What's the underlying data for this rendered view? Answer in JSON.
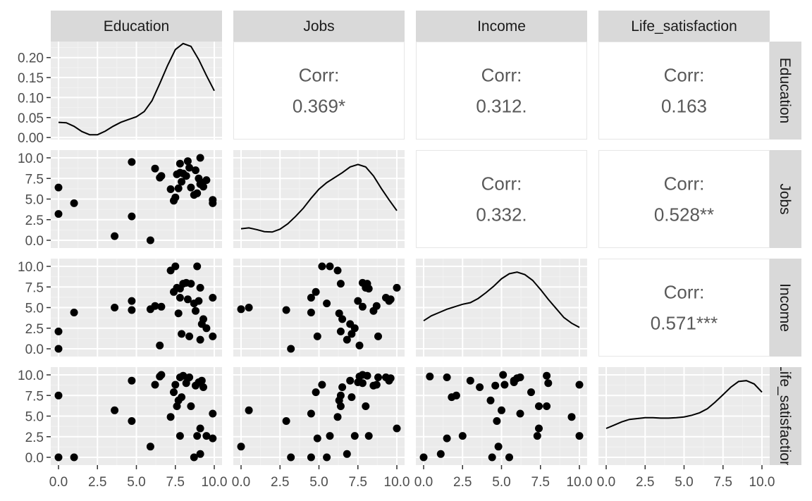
{
  "chart_data": {
    "type": "scatter",
    "variables": [
      "Education",
      "Jobs",
      "Income",
      "Life_satisfaction"
    ],
    "y_ticks": [
      "0.0",
      "2.5",
      "5.0",
      "7.5",
      "10.0"
    ],
    "x_ticks": [
      "0.0",
      "2.5",
      "5.0",
      "7.5",
      "10.0"
    ],
    "density_ticks": [
      "0.00",
      "0.05",
      "0.10",
      "0.15",
      "0.20"
    ],
    "range": [
      0,
      10
    ],
    "density_range": [
      -0.005,
      0.24
    ],
    "correlations": [
      {
        "row": 0,
        "col": 1,
        "label": "Corr:",
        "value": "0.369*"
      },
      {
        "row": 0,
        "col": 2,
        "label": "Corr:",
        "value": "0.312."
      },
      {
        "row": 0,
        "col": 3,
        "label": "Corr:",
        "value": "0.163"
      },
      {
        "row": 1,
        "col": 2,
        "label": "Corr:",
        "value": "0.332."
      },
      {
        "row": 1,
        "col": 3,
        "label": "Corr:",
        "value": "0.528**"
      },
      {
        "row": 2,
        "col": 3,
        "label": "Corr:",
        "value": "0.571***"
      }
    ],
    "densities": [
      {
        "x": [
          0,
          0.5,
          1,
          1.5,
          2,
          2.5,
          3,
          3.5,
          4,
          4.5,
          5,
          5.5,
          6,
          6.5,
          7,
          7.5,
          8,
          8.5,
          9,
          9.5,
          10
        ],
        "y": [
          0.038,
          0.037,
          0.028,
          0.015,
          0.007,
          0.007,
          0.016,
          0.028,
          0.038,
          0.045,
          0.052,
          0.065,
          0.092,
          0.135,
          0.18,
          0.22,
          0.235,
          0.228,
          0.195,
          0.155,
          0.117
        ]
      },
      {
        "x": [
          0,
          0.5,
          1,
          1.5,
          2,
          2.5,
          3,
          3.5,
          4,
          4.5,
          5,
          5.5,
          6,
          6.5,
          7,
          7.5,
          8,
          8.5,
          9,
          9.5,
          10
        ],
        "y": [
          1.4,
          1.5,
          1.3,
          1.05,
          1.0,
          1.35,
          2.0,
          2.9,
          3.9,
          5.1,
          6.2,
          7.0,
          7.6,
          8.2,
          8.9,
          9.2,
          8.9,
          7.8,
          6.3,
          4.9,
          3.6
        ]
      },
      {
        "x": [
          0,
          0.5,
          1,
          1.5,
          2,
          2.5,
          3,
          3.5,
          4,
          4.5,
          5,
          5.5,
          6,
          6.5,
          7,
          7.5,
          8,
          8.5,
          9,
          9.5,
          10
        ],
        "y": [
          3.4,
          4.0,
          4.4,
          4.8,
          5.1,
          5.4,
          5.6,
          6.1,
          6.8,
          7.6,
          8.5,
          9.1,
          9.3,
          9.0,
          8.3,
          7.2,
          6.0,
          4.9,
          3.8,
          3.1,
          2.6
        ]
      },
      {
        "x": [
          0,
          0.5,
          1,
          1.5,
          2,
          2.5,
          3,
          3.5,
          4,
          4.5,
          5,
          5.5,
          6,
          6.5,
          7,
          7.5,
          8,
          8.5,
          9,
          9.5,
          10
        ],
        "y": [
          3.5,
          3.9,
          4.3,
          4.6,
          4.7,
          4.8,
          4.8,
          4.75,
          4.75,
          4.8,
          4.9,
          5.1,
          5.4,
          5.9,
          6.7,
          7.6,
          8.5,
          9.2,
          9.3,
          8.9,
          7.9
        ]
      }
    ],
    "series": [
      {
        "name": "Education",
        "values": [
          0.0,
          0.0,
          1.0,
          3.6,
          4.7,
          4.7,
          5.9,
          6.2,
          6.5,
          6.6,
          7.2,
          7.4,
          7.5,
          7.6,
          7.7,
          7.8,
          7.8,
          7.9,
          8.0,
          8.2,
          8.3,
          8.4,
          8.5,
          8.7,
          8.8,
          8.9,
          9.0,
          9.1,
          9.1,
          9.2,
          9.3,
          9.5,
          9.9,
          9.9
        ]
      },
      {
        "name": "Jobs",
        "values": [
          3.2,
          6.4,
          4.5,
          0.5,
          9.5,
          2.9,
          0.0,
          8.7,
          7.6,
          7.8,
          6.2,
          4.8,
          5.2,
          8.0,
          6.3,
          9.3,
          8.2,
          7.1,
          8.1,
          7.8,
          9.6,
          8.8,
          6.4,
          5.5,
          8.5,
          5.7,
          7.5,
          10.0,
          6.8,
          7.0,
          6.5,
          7.3,
          4.9,
          4.5
        ]
      },
      {
        "name": "Income",
        "values": [
          0.0,
          2.1,
          4.4,
          5.0,
          5.8,
          4.7,
          4.8,
          5.2,
          0.4,
          5.1,
          9.5,
          6.9,
          10.0,
          7.4,
          4.3,
          6.2,
          7.3,
          1.8,
          7.9,
          8.0,
          6.0,
          1.5,
          7.9,
          5.5,
          4.6,
          10.0,
          5.8,
          7.4,
          1.1,
          3.0,
          3.6,
          2.5,
          1.5,
          6.2
        ]
      },
      {
        "name": "Life_satisfaction",
        "values": [
          0.0,
          7.5,
          0.0,
          5.7,
          9.3,
          4.4,
          1.3,
          8.8,
          9.8,
          10.0,
          4.9,
          7.9,
          8.8,
          6.2,
          6.9,
          9.7,
          2.6,
          7.3,
          9.9,
          9.0,
          9.6,
          9.7,
          6.2,
          0.0,
          8.7,
          2.6,
          9.1,
          3.5,
          0.4,
          9.3,
          8.5,
          2.6,
          2.3,
          5.3
        ]
      }
    ]
  }
}
